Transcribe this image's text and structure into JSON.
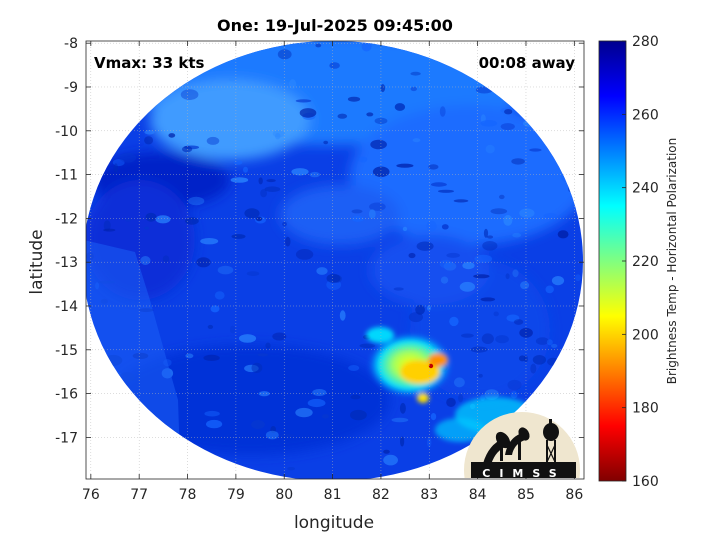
{
  "title": "One: 19-Jul-2025 09:45:00",
  "vmax_label": "Vmax: 33 kts",
  "time_away": "00:08 away",
  "logo_text": "CIMSS",
  "chart_data": {
    "type": "heatmap",
    "xlabel": "longitude",
    "ylabel": "latitude",
    "xlim": [
      75.9,
      86.2
    ],
    "ylim": [
      -17.95,
      -7.95
    ],
    "x_ticks": [
      "76",
      "77",
      "78",
      "79",
      "80",
      "81",
      "82",
      "83",
      "84",
      "85",
      "86"
    ],
    "y_ticks": [
      "-8",
      "-9",
      "-10",
      "-11",
      "-12",
      "-13",
      "-14",
      "-15",
      "-16",
      "-17"
    ],
    "grid": true,
    "colorbar": {
      "label": "Brightness Temp - Horizontal Polarization",
      "min": 160,
      "max": 280,
      "ticks": [
        "160",
        "180",
        "200",
        "220",
        "240",
        "260",
        "280"
      ]
    },
    "swath_center": [
      81.0,
      -13.0
    ],
    "feature_center": [
      82.8,
      -15.3
    ],
    "min_temp_point": [
      83.0,
      -15.4
    ]
  },
  "colors": {
    "jet": [
      "#00008f",
      "#0000ff",
      "#0080ff",
      "#00ffff",
      "#80ff80",
      "#ffff00",
      "#ff8000",
      "#ff0000",
      "#800000"
    ]
  }
}
